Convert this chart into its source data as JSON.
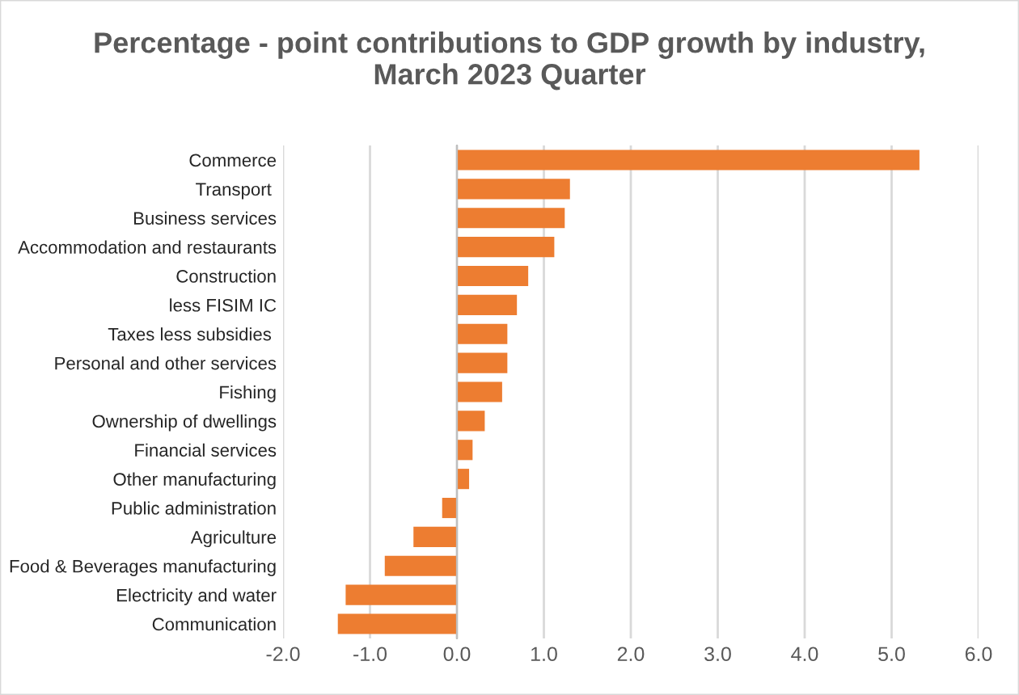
{
  "chart_data": {
    "type": "bar",
    "orientation": "horizontal",
    "title": "Percentage - point contributions to GDP growth by industry,\nMarch 2023 Quarter",
    "categories": [
      "Commerce",
      "Transport ",
      "Business services",
      "Accommodation and restaurants",
      "Construction",
      "less FISIM IC",
      "Taxes less subsidies ",
      "Personal and other services",
      "Fishing",
      "Ownership of dwellings",
      "Financial services",
      "Other manufacturing",
      "Public administration",
      "Agriculture",
      "Food & Beverages manufacturing",
      "Electricity and water",
      "Communication"
    ],
    "values": [
      5.32,
      1.3,
      1.24,
      1.12,
      0.82,
      0.69,
      0.58,
      0.58,
      0.52,
      0.32,
      0.18,
      0.14,
      -0.17,
      -0.5,
      -0.83,
      -1.28,
      -1.37
    ],
    "color": "#ed7d31",
    "xlim": [
      -2.0,
      6.0
    ],
    "xticks": [
      {
        "value": -2,
        "label": "-2.0"
      },
      {
        "value": -1,
        "label": "-1.0"
      },
      {
        "value": 0,
        "label": "0.0"
      },
      {
        "value": 1,
        "label": "1.0"
      },
      {
        "value": 2,
        "label": "2.0"
      },
      {
        "value": 3,
        "label": "3.0"
      },
      {
        "value": 4,
        "label": "4.0"
      },
      {
        "value": 5,
        "label": "5.0"
      },
      {
        "value": 6,
        "label": "6.0"
      }
    ],
    "grid": "x"
  }
}
